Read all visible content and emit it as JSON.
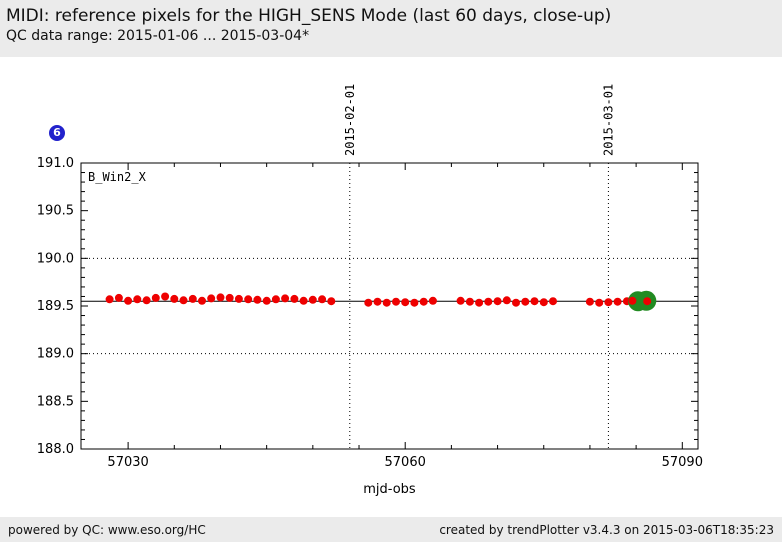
{
  "header": {
    "title": "MIDI: reference pixels for the HIGH_SENS Mode (last 60 days, close-up)",
    "subtitle": "QC data range: 2015-01-06 ... 2015-03-04*"
  },
  "badge": {
    "label": "6",
    "color": "#2222cc"
  },
  "footer": {
    "left": "powered by QC: www.eso.org/HC",
    "right": "created by trendPlotter v3.4.3 on 2015-03-06T18:35:23"
  },
  "colors": {
    "band_bg": "#ebebeb",
    "point_red": "#ee0000",
    "point_green": "#228b22",
    "badge_blue": "#2222cc",
    "axis_black": "#000000"
  },
  "chart_data": {
    "type": "scatter",
    "plot_label": "B_Win2_X",
    "xlabel": "mjd-obs",
    "xlim": [
      57024.9,
      57091.7
    ],
    "ylim": [
      188.0,
      191.0
    ],
    "x_major_ticks": [
      57030,
      57060,
      57090
    ],
    "x_minor_step": 5,
    "y_major_step": 0.5,
    "y_minor_step": 0.1,
    "grid": "horizontal dotted at integer values, vertical dotted at month starts",
    "h_gridlines": [
      189.0,
      190.0
    ],
    "reference_line_y": 189.55,
    "v_lines": [
      {
        "x": 57054,
        "label": "2015-02-01"
      },
      {
        "x": 57082,
        "label": "2015-03-01"
      }
    ],
    "series": [
      {
        "name": "qc-point",
        "color": "#ee0000",
        "marker_radius": 4,
        "points": [
          [
            57028,
            189.57
          ],
          [
            57029,
            189.585
          ],
          [
            57030,
            189.555
          ],
          [
            57031,
            189.57
          ],
          [
            57032,
            189.56
          ],
          [
            57033,
            189.585
          ],
          [
            57034,
            189.6
          ],
          [
            57035,
            189.575
          ],
          [
            57036,
            189.56
          ],
          [
            57037,
            189.575
          ],
          [
            57038,
            189.555
          ],
          [
            57039,
            189.58
          ],
          [
            57040,
            189.59
          ],
          [
            57041,
            189.585
          ],
          [
            57042,
            189.575
          ],
          [
            57043,
            189.57
          ],
          [
            57044,
            189.565
          ],
          [
            57045,
            189.555
          ],
          [
            57046,
            189.57
          ],
          [
            57047,
            189.58
          ],
          [
            57048,
            189.575
          ],
          [
            57049,
            189.555
          ],
          [
            57050,
            189.565
          ],
          [
            57051,
            189.57
          ],
          [
            57052,
            189.55
          ],
          [
            57056,
            189.535
          ],
          [
            57057,
            189.545
          ],
          [
            57058,
            189.535
          ],
          [
            57059,
            189.545
          ],
          [
            57060,
            189.54
          ],
          [
            57061,
            189.535
          ],
          [
            57062,
            189.545
          ],
          [
            57063,
            189.555
          ],
          [
            57066,
            189.555
          ],
          [
            57067,
            189.545
          ],
          [
            57068,
            189.535
          ],
          [
            57069,
            189.545
          ],
          [
            57070,
            189.55
          ],
          [
            57071,
            189.56
          ],
          [
            57072,
            189.535
          ],
          [
            57073,
            189.545
          ],
          [
            57074,
            189.55
          ],
          [
            57075,
            189.54
          ],
          [
            57076,
            189.55
          ],
          [
            57080,
            189.545
          ],
          [
            57081,
            189.535
          ],
          [
            57082,
            189.54
          ],
          [
            57083,
            189.545
          ],
          [
            57084,
            189.55
          ]
        ]
      },
      {
        "name": "highlight-point",
        "color": "#228b22",
        "marker_radius": 10,
        "points": [
          [
            57085.2,
            189.55
          ],
          [
            57086.1,
            189.555
          ]
        ]
      },
      {
        "name": "qc-point-latest",
        "color": "#ee0000",
        "marker_radius": 4,
        "points": [
          [
            57084.6,
            189.555
          ],
          [
            57086.2,
            189.55
          ]
        ]
      }
    ]
  }
}
